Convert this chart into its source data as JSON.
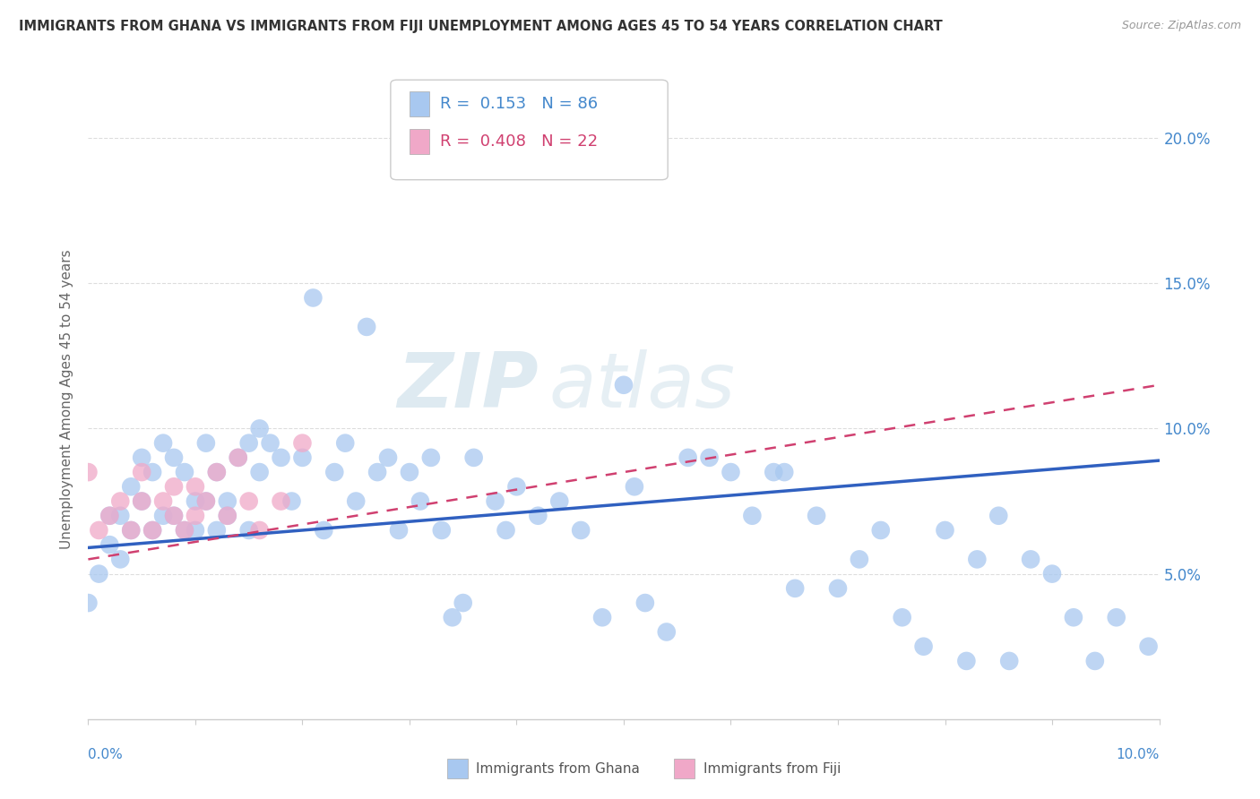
{
  "title": "IMMIGRANTS FROM GHANA VS IMMIGRANTS FROM FIJI UNEMPLOYMENT AMONG AGES 45 TO 54 YEARS CORRELATION CHART",
  "source": "Source: ZipAtlas.com",
  "ylabel": "Unemployment Among Ages 45 to 54 years",
  "xlim": [
    0.0,
    0.1
  ],
  "ylim": [
    0.0,
    0.22
  ],
  "ghana_color": "#a8c8f0",
  "fiji_color": "#f0a8c8",
  "ghana_line_color": "#3060c0",
  "fiji_line_color": "#d04070",
  "watermark_zip": "ZIP",
  "watermark_atlas": "atlas",
  "background_color": "#ffffff",
  "grid_color": "#dddddd",
  "ytick_positions": [
    0.05,
    0.1,
    0.15,
    0.2
  ],
  "ytick_labels": [
    "5.0%",
    "10.0%",
    "15.0%",
    "20.0%"
  ],
  "ghana_r": 0.153,
  "ghana_n": 86,
  "fiji_r": 0.408,
  "fiji_n": 22,
  "ghana_line_x0": 0.0,
  "ghana_line_y0": 0.059,
  "ghana_line_x1": 0.1,
  "ghana_line_y1": 0.089,
  "fiji_line_x0": 0.0,
  "fiji_line_y0": 0.055,
  "fiji_line_x1": 0.1,
  "fiji_line_y1": 0.115,
  "ghana_pts_x": [
    0.0,
    0.001,
    0.002,
    0.002,
    0.003,
    0.003,
    0.004,
    0.004,
    0.005,
    0.005,
    0.006,
    0.006,
    0.007,
    0.007,
    0.008,
    0.008,
    0.009,
    0.009,
    0.01,
    0.01,
    0.011,
    0.011,
    0.012,
    0.012,
    0.013,
    0.013,
    0.014,
    0.015,
    0.015,
    0.016,
    0.016,
    0.017,
    0.018,
    0.019,
    0.02,
    0.021,
    0.022,
    0.023,
    0.024,
    0.025,
    0.026,
    0.027,
    0.028,
    0.029,
    0.03,
    0.031,
    0.032,
    0.033,
    0.034,
    0.035,
    0.036,
    0.038,
    0.039,
    0.04,
    0.042,
    0.044,
    0.046,
    0.048,
    0.05,
    0.051,
    0.052,
    0.054,
    0.056,
    0.058,
    0.06,
    0.062,
    0.064,
    0.065,
    0.066,
    0.068,
    0.07,
    0.072,
    0.074,
    0.076,
    0.078,
    0.08,
    0.082,
    0.083,
    0.085,
    0.086,
    0.088,
    0.09,
    0.092,
    0.094,
    0.096,
    0.099
  ],
  "ghana_pts_y": [
    0.04,
    0.05,
    0.06,
    0.07,
    0.055,
    0.07,
    0.065,
    0.08,
    0.075,
    0.09,
    0.065,
    0.085,
    0.07,
    0.095,
    0.07,
    0.09,
    0.065,
    0.085,
    0.065,
    0.075,
    0.075,
    0.095,
    0.065,
    0.085,
    0.07,
    0.075,
    0.09,
    0.065,
    0.095,
    0.085,
    0.1,
    0.095,
    0.09,
    0.075,
    0.09,
    0.145,
    0.065,
    0.085,
    0.095,
    0.075,
    0.135,
    0.085,
    0.09,
    0.065,
    0.085,
    0.075,
    0.09,
    0.065,
    0.035,
    0.04,
    0.09,
    0.075,
    0.065,
    0.08,
    0.07,
    0.075,
    0.065,
    0.035,
    0.115,
    0.08,
    0.04,
    0.03,
    0.09,
    0.09,
    0.085,
    0.07,
    0.085,
    0.085,
    0.045,
    0.07,
    0.045,
    0.055,
    0.065,
    0.035,
    0.025,
    0.065,
    0.02,
    0.055,
    0.07,
    0.02,
    0.055,
    0.05,
    0.035,
    0.02,
    0.035,
    0.025
  ],
  "fiji_pts_x": [
    0.0,
    0.001,
    0.002,
    0.003,
    0.004,
    0.005,
    0.005,
    0.006,
    0.007,
    0.008,
    0.008,
    0.009,
    0.01,
    0.01,
    0.011,
    0.012,
    0.013,
    0.014,
    0.015,
    0.016,
    0.018,
    0.02
  ],
  "fiji_pts_y": [
    0.085,
    0.065,
    0.07,
    0.075,
    0.065,
    0.075,
    0.085,
    0.065,
    0.075,
    0.08,
    0.07,
    0.065,
    0.07,
    0.08,
    0.075,
    0.085,
    0.07,
    0.09,
    0.075,
    0.065,
    0.075,
    0.095
  ]
}
